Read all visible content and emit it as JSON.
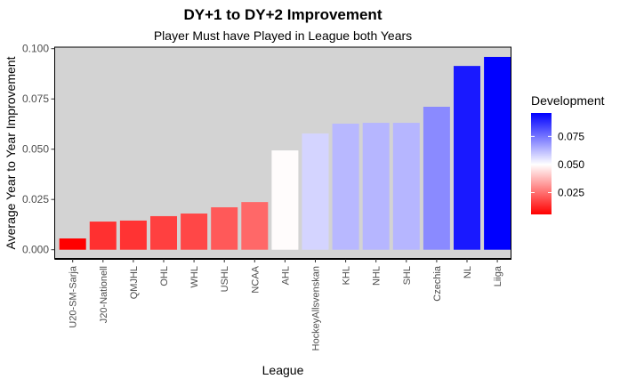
{
  "chart_data": {
    "type": "bar",
    "title": "DY+1 to DY+2 Improvement",
    "subtitle": "Player Must have Played in League both Years",
    "xlabel": "League",
    "ylabel": "Average Year to Year Improvement",
    "ylim": [
      0,
      0.1
    ],
    "yticks": [
      "0.000",
      "0.025",
      "0.050",
      "0.075",
      "0.100"
    ],
    "grid": false,
    "categories": [
      "U20-SM-Sarja",
      "J20-Nationell",
      "QMJHL",
      "OHL",
      "WHL",
      "USHL",
      "NCAA",
      "AHL",
      "HockeyAllsvenskan",
      "KHL",
      "NHL",
      "SHL",
      "Czechia",
      "NL",
      "Liiga"
    ],
    "values": [
      0.0056,
      0.014,
      0.0145,
      0.0167,
      0.018,
      0.0211,
      0.0237,
      0.0494,
      0.0578,
      0.0627,
      0.0631,
      0.0631,
      0.0711,
      0.0914,
      0.0959
    ],
    "legend": {
      "title": "Development",
      "placement": "right",
      "ticks": [
        "0.025",
        "0.050",
        "0.075"
      ],
      "low_color": "#ff0000",
      "mid_color": "#ffffff",
      "high_color": "#0000ff",
      "midpoint": 0.05
    },
    "panel_color": "#d3d3d3"
  }
}
